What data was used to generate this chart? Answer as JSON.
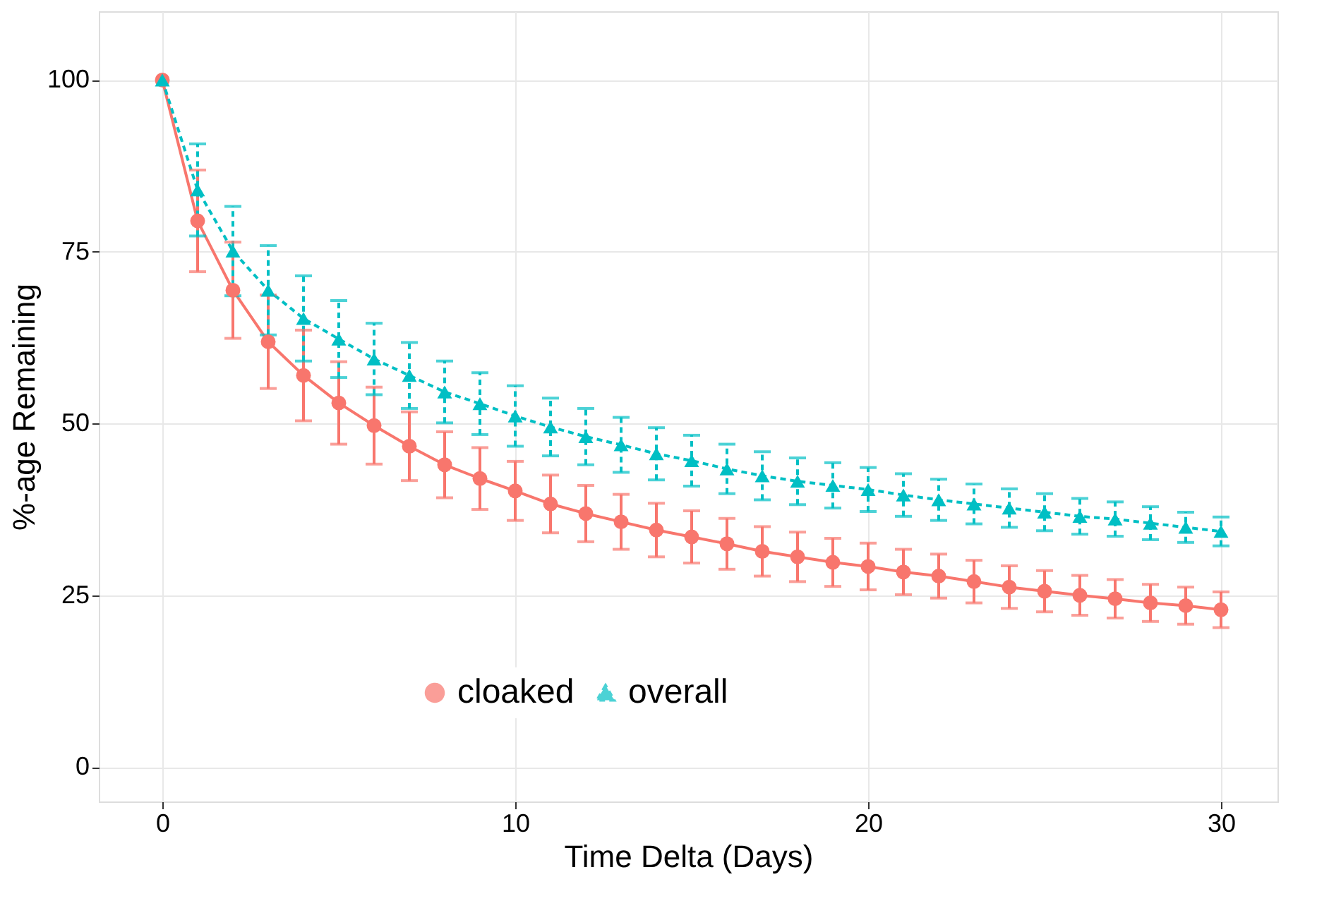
{
  "chart_data": {
    "type": "line",
    "xlabel": "Time Delta (Days)",
    "ylabel": "%-age Remaining",
    "x": [
      0,
      1,
      2,
      3,
      4,
      5,
      6,
      7,
      8,
      9,
      10,
      11,
      12,
      13,
      14,
      15,
      16,
      17,
      18,
      19,
      20,
      21,
      22,
      23,
      24,
      25,
      26,
      27,
      28,
      29,
      30
    ],
    "series": [
      {
        "name": "cloaked",
        "color": "#f8766d",
        "marker": "circle",
        "line_style": "solid",
        "values": [
          100,
          79.5,
          69.4,
          61.9,
          57.0,
          53.0,
          49.7,
          46.7,
          44.0,
          42.0,
          40.2,
          38.3,
          36.9,
          35.7,
          34.5,
          33.5,
          32.5,
          31.4,
          30.6,
          29.8,
          29.2,
          28.4,
          27.8,
          27.0,
          26.2,
          25.6,
          25.0,
          24.5,
          23.9,
          23.5,
          22.9
        ],
        "errors": [
          null,
          7.4,
          7.0,
          6.8,
          6.6,
          6.0,
          5.6,
          5.0,
          4.8,
          4.5,
          4.3,
          4.2,
          4.1,
          4.0,
          3.9,
          3.8,
          3.7,
          3.6,
          3.6,
          3.5,
          3.4,
          3.3,
          3.2,
          3.1,
          3.1,
          3.0,
          2.9,
          2.8,
          2.7,
          2.7,
          2.6
        ]
      },
      {
        "name": "overall",
        "color": "#00bfc4",
        "marker": "triangle",
        "line_style": "dashed",
        "values": [
          100,
          84.0,
          75.1,
          69.4,
          65.3,
          62.3,
          59.4,
          57.0,
          54.6,
          52.9,
          51.1,
          49.5,
          48.1,
          46.9,
          45.6,
          44.6,
          43.4,
          42.4,
          41.6,
          41.0,
          40.4,
          39.6,
          38.9,
          38.3,
          37.7,
          37.1,
          36.5,
          36.1,
          35.5,
          34.9,
          34.3
        ],
        "errors": [
          null,
          6.7,
          6.5,
          6.5,
          6.2,
          5.6,
          5.2,
          4.8,
          4.5,
          4.5,
          4.4,
          4.2,
          4.1,
          4.0,
          3.8,
          3.7,
          3.6,
          3.5,
          3.4,
          3.3,
          3.2,
          3.1,
          3.0,
          2.9,
          2.8,
          2.7,
          2.6,
          2.5,
          2.4,
          2.2,
          2.1
        ]
      }
    ],
    "xlim": [
      -1.8,
      31.6
    ],
    "ylim": [
      -5,
      110
    ],
    "xticks": [
      0,
      10,
      20,
      30
    ],
    "yticks": [
      0,
      25,
      50,
      75,
      100
    ],
    "grid": true,
    "legend": "bottom"
  }
}
